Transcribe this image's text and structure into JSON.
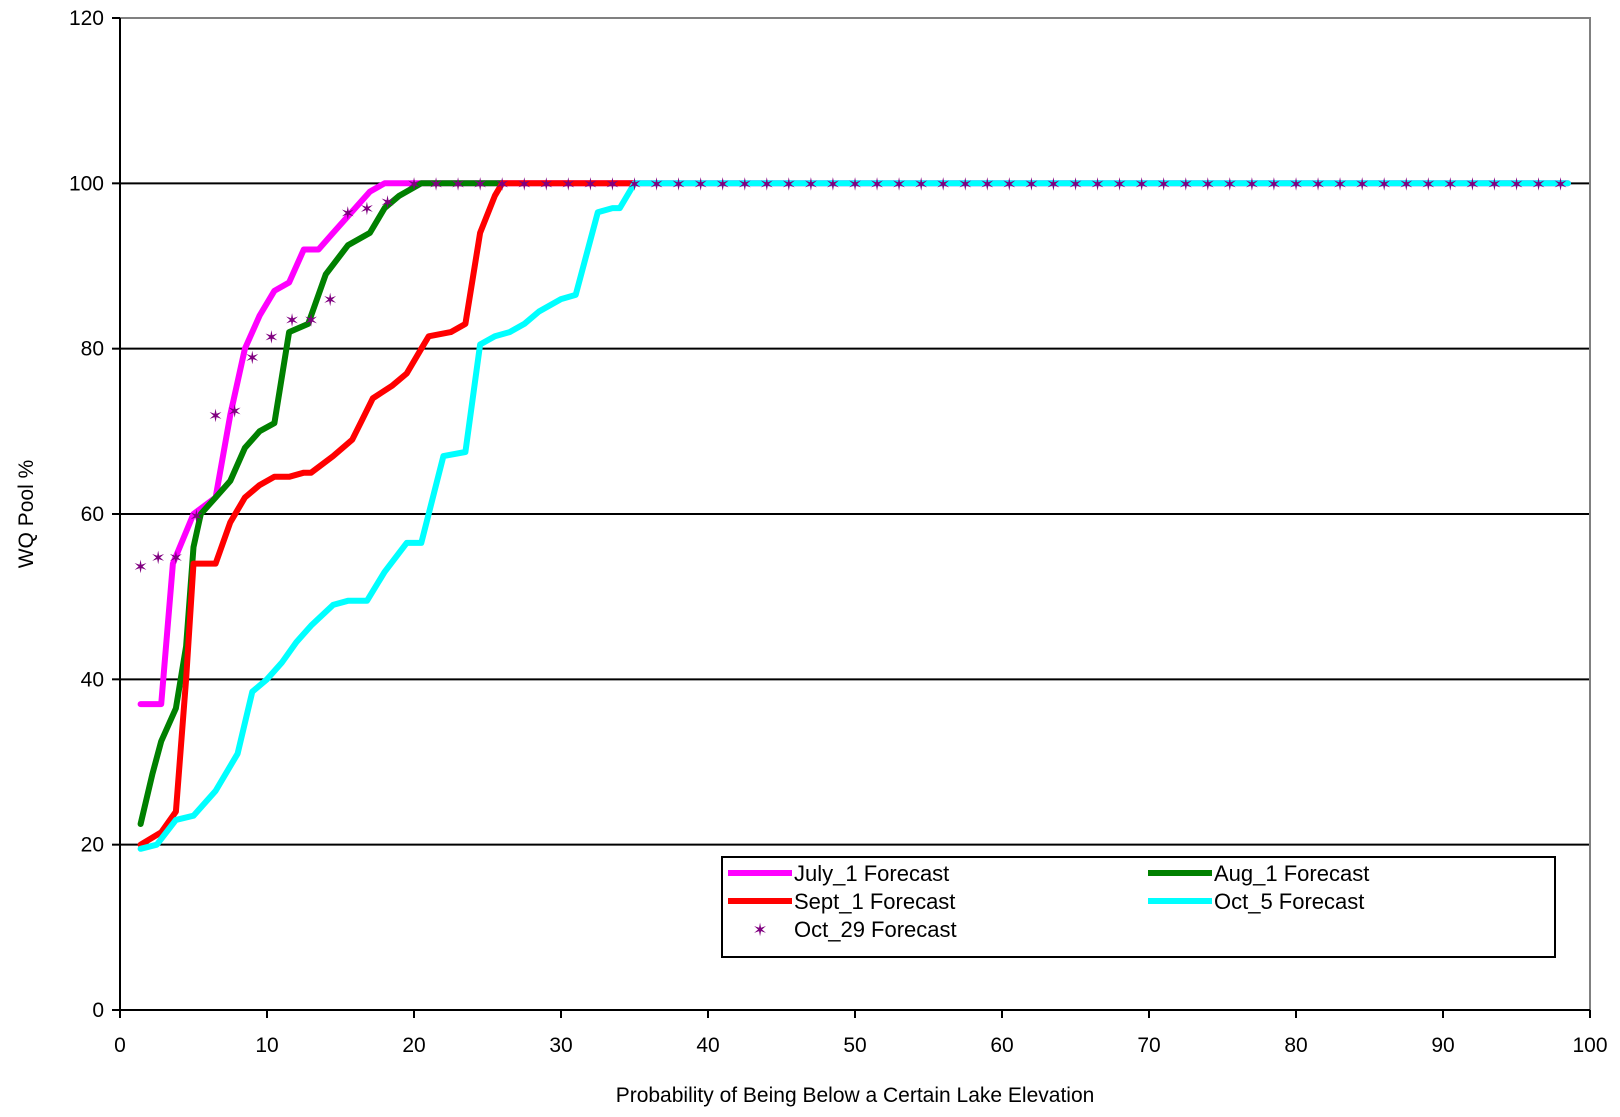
{
  "chart_data": {
    "type": "line",
    "title": "",
    "xlabel": "Probability of Being Below a Certain Lake Elevation",
    "ylabel": "WQ Pool %",
    "xlim": [
      0,
      100
    ],
    "ylim": [
      0,
      120
    ],
    "xticks": [
      0,
      10,
      20,
      30,
      40,
      50,
      60,
      70,
      80,
      90,
      100
    ],
    "yticks": [
      0,
      20,
      40,
      60,
      80,
      100,
      120
    ],
    "grid": "horizontal",
    "legend_position": "bottom-right inside plot",
    "series": [
      {
        "name": "July_1 Forecast",
        "color": "#ff00ff",
        "style": "line",
        "points": [
          [
            1.4,
            37
          ],
          [
            2.8,
            37
          ],
          [
            3.6,
            54
          ],
          [
            5,
            60
          ],
          [
            6.5,
            62
          ],
          [
            7.5,
            72
          ],
          [
            8.5,
            80
          ],
          [
            9.5,
            84
          ],
          [
            10.5,
            87
          ],
          [
            11.5,
            88
          ],
          [
            12.5,
            92
          ],
          [
            13.5,
            92
          ],
          [
            14.5,
            94
          ],
          [
            16,
            97
          ],
          [
            17,
            99
          ],
          [
            18,
            100
          ],
          [
            21,
            100
          ],
          [
            98.5,
            100
          ]
        ]
      },
      {
        "name": "Aug_1 Forecast",
        "color": "#008000",
        "style": "line",
        "points": [
          [
            1.4,
            22.5
          ],
          [
            2.2,
            28.5
          ],
          [
            2.8,
            32.5
          ],
          [
            3.8,
            36.5
          ],
          [
            4.5,
            44
          ],
          [
            5,
            56
          ],
          [
            5.5,
            60
          ],
          [
            6.5,
            62
          ],
          [
            7.5,
            64
          ],
          [
            8.5,
            68
          ],
          [
            9.5,
            70
          ],
          [
            10.5,
            71
          ],
          [
            11.5,
            82
          ],
          [
            12.8,
            83
          ],
          [
            14,
            89
          ],
          [
            15.5,
            92.5
          ],
          [
            17,
            94
          ],
          [
            18,
            97
          ],
          [
            19,
            98.5
          ],
          [
            20.5,
            100
          ],
          [
            26,
            100
          ]
        ]
      },
      {
        "name": "Sept_1 Forecast",
        "color": "#ff0000",
        "style": "line",
        "points": [
          [
            1.4,
            20
          ],
          [
            2.8,
            21.5
          ],
          [
            3.8,
            24
          ],
          [
            4.5,
            40
          ],
          [
            5,
            54
          ],
          [
            6.5,
            54
          ],
          [
            7.5,
            59
          ],
          [
            8.5,
            62
          ],
          [
            9.5,
            63.5
          ],
          [
            10.5,
            64.5
          ],
          [
            11.5,
            64.5
          ],
          [
            12.5,
            65
          ],
          [
            13,
            65
          ],
          [
            14.5,
            67
          ],
          [
            15.8,
            69
          ],
          [
            16.5,
            71.5
          ],
          [
            17.2,
            74
          ],
          [
            18.5,
            75.5
          ],
          [
            19.5,
            77
          ],
          [
            20.5,
            80
          ],
          [
            21,
            81.5
          ],
          [
            22.5,
            82
          ],
          [
            23.5,
            83
          ],
          [
            24.5,
            94
          ],
          [
            25.5,
            98.5
          ],
          [
            26,
            100
          ],
          [
            35,
            100
          ]
        ]
      },
      {
        "name": "Oct_5 Forecast",
        "color": "#00ffff",
        "style": "line",
        "points": [
          [
            1.4,
            19.5
          ],
          [
            2.5,
            20
          ],
          [
            3.8,
            23
          ],
          [
            5,
            23.5
          ],
          [
            6.5,
            26.5
          ],
          [
            8,
            31
          ],
          [
            9,
            38.5
          ],
          [
            10,
            40
          ],
          [
            11,
            42
          ],
          [
            12,
            44.5
          ],
          [
            13,
            46.5
          ],
          [
            14.5,
            49
          ],
          [
            15.5,
            49.5
          ],
          [
            16.8,
            49.5
          ],
          [
            18,
            53
          ],
          [
            19.5,
            56.5
          ],
          [
            20.5,
            56.5
          ],
          [
            22,
            67
          ],
          [
            23.5,
            67.5
          ],
          [
            24.5,
            80.5
          ],
          [
            25.5,
            81.5
          ],
          [
            26.5,
            82
          ],
          [
            27.5,
            83
          ],
          [
            28.5,
            84.5
          ],
          [
            30,
            86
          ],
          [
            31,
            86.5
          ],
          [
            32.5,
            96.5
          ],
          [
            33.5,
            97
          ],
          [
            34,
            97
          ],
          [
            35,
            100
          ],
          [
            98.5,
            100
          ]
        ]
      },
      {
        "name": "Oct_29 Forecast",
        "color": "#800080",
        "style": "marker",
        "marker": "asterisk",
        "points": [
          [
            1.4,
            53.7
          ],
          [
            2.6,
            54.8
          ],
          [
            3.8,
            54.8
          ],
          [
            5.2,
            59.8
          ],
          [
            6.5,
            72
          ],
          [
            7.8,
            72.5
          ],
          [
            9,
            79
          ],
          [
            10.3,
            81.5
          ],
          [
            11.7,
            83.5
          ],
          [
            13,
            83.5
          ],
          [
            14.3,
            86
          ],
          [
            15.5,
            96.5
          ],
          [
            16.8,
            97
          ],
          [
            18.2,
            97.8
          ],
          [
            20,
            100
          ],
          [
            21.5,
            100
          ],
          [
            23,
            100
          ],
          [
            24.5,
            100
          ],
          [
            26,
            100
          ],
          [
            27.5,
            100
          ],
          [
            29,
            100
          ],
          [
            30.5,
            100
          ],
          [
            32,
            100
          ],
          [
            33.5,
            100
          ],
          [
            35,
            100
          ],
          [
            36.5,
            100
          ],
          [
            38,
            100
          ],
          [
            39.5,
            100
          ],
          [
            41,
            100
          ],
          [
            42.5,
            100
          ],
          [
            44,
            100
          ],
          [
            45.5,
            100
          ],
          [
            47,
            100
          ],
          [
            48.5,
            100
          ],
          [
            50,
            100
          ],
          [
            51.5,
            100
          ],
          [
            53,
            100
          ],
          [
            54.5,
            100
          ],
          [
            56,
            100
          ],
          [
            57.5,
            100
          ],
          [
            59,
            100
          ],
          [
            60.5,
            100
          ],
          [
            62,
            100
          ],
          [
            63.5,
            100
          ],
          [
            65,
            100
          ],
          [
            66.5,
            100
          ],
          [
            68,
            100
          ],
          [
            69.5,
            100
          ],
          [
            71,
            100
          ],
          [
            72.5,
            100
          ],
          [
            74,
            100
          ],
          [
            75.5,
            100
          ],
          [
            77,
            100
          ],
          [
            78.5,
            100
          ],
          [
            80,
            100
          ],
          [
            81.5,
            100
          ],
          [
            83,
            100
          ],
          [
            84.5,
            100
          ],
          [
            86,
            100
          ],
          [
            87.5,
            100
          ],
          [
            89,
            100
          ],
          [
            90.5,
            100
          ],
          [
            92,
            100
          ],
          [
            93.5,
            100
          ],
          [
            95,
            100
          ],
          [
            96.5,
            100
          ],
          [
            98,
            100
          ]
        ]
      }
    ]
  }
}
